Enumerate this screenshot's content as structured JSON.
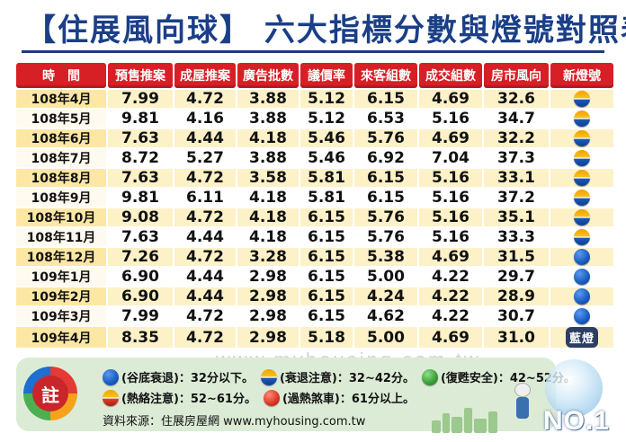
{
  "title": {
    "bracket_left": "【",
    "brand": "住展風向球",
    "bracket_right": "】",
    "rest": "六大指標分數與燈號對照表"
  },
  "table": {
    "headers": [
      "時　間",
      "預售推案",
      "成屋推案",
      "廣告批數",
      "議價率",
      "來客組數",
      "成交組數",
      "房市風向",
      "新燈號"
    ],
    "rows": [
      {
        "month": "108年4月",
        "v": [
          "7.99",
          "4.72",
          "3.88",
          "5.12",
          "6.15",
          "4.69",
          "32.6"
        ],
        "lamp": "yellow-blue"
      },
      {
        "month": "108年5月",
        "v": [
          "9.81",
          "4.16",
          "3.88",
          "5.12",
          "6.53",
          "5.16",
          "34.7"
        ],
        "lamp": "yellow-blue"
      },
      {
        "month": "108年6月",
        "v": [
          "7.63",
          "4.44",
          "4.18",
          "5.46",
          "5.76",
          "4.69",
          "32.2"
        ],
        "lamp": "yellow-blue"
      },
      {
        "month": "108年7月",
        "v": [
          "8.72",
          "5.27",
          "3.88",
          "5.46",
          "6.92",
          "7.04",
          "37.3"
        ],
        "lamp": "yellow-blue"
      },
      {
        "month": "108年8月",
        "v": [
          "7.63",
          "4.72",
          "3.58",
          "5.81",
          "6.15",
          "5.16",
          "33.1"
        ],
        "lamp": "yellow-blue"
      },
      {
        "month": "108年9月",
        "v": [
          "9.81",
          "6.11",
          "4.18",
          "5.81",
          "6.15",
          "5.16",
          "37.2"
        ],
        "lamp": "yellow-blue"
      },
      {
        "month": "108年10月",
        "v": [
          "9.08",
          "4.72",
          "4.18",
          "6.15",
          "5.76",
          "5.16",
          "35.1"
        ],
        "lamp": "yellow-blue"
      },
      {
        "month": "108年11月",
        "v": [
          "7.63",
          "4.44",
          "4.18",
          "6.15",
          "5.76",
          "5.16",
          "33.3"
        ],
        "lamp": "yellow-blue"
      },
      {
        "month": "108年12月",
        "v": [
          "7.26",
          "4.72",
          "3.28",
          "6.15",
          "5.38",
          "4.69",
          "31.5"
        ],
        "lamp": "blue"
      },
      {
        "month": "109年1月",
        "v": [
          "6.90",
          "4.44",
          "2.98",
          "6.15",
          "5.00",
          "4.22",
          "29.7"
        ],
        "lamp": "blue"
      },
      {
        "month": "109年2月",
        "v": [
          "6.90",
          "4.44",
          "2.98",
          "6.15",
          "4.24",
          "4.22",
          "28.9"
        ],
        "lamp": "blue"
      },
      {
        "month": "109年3月",
        "v": [
          "7.99",
          "4.72",
          "2.98",
          "6.15",
          "4.62",
          "4.22",
          "30.7"
        ],
        "lamp": "blue"
      },
      {
        "month": "109年4月",
        "v": [
          "8.35",
          "4.72",
          "2.98",
          "5.18",
          "5.00",
          "4.69",
          "31.0"
        ],
        "lamp": "label"
      }
    ],
    "last_lamp_label": "藍燈"
  },
  "watermark": "www.myhousing.com.tw",
  "legend": {
    "badge": "註",
    "items_line1": [
      {
        "text": "(谷底衰退)：32分以下。",
        "icon": "blue"
      },
      {
        "text": "(衰退注意)：32~42分。",
        "icon": "yellow-blue"
      },
      {
        "text": "(復甦安全)：42~52分。",
        "icon": "green"
      }
    ],
    "items_line2": [
      {
        "text": "(熱絡注意)：52~61分。",
        "icon": "yellow-red"
      },
      {
        "text": "(過熱煞車)：61分以上。",
        "icon": "red"
      }
    ],
    "source": "資料來源：住展房屋網 www.myhousing.com.tw"
  },
  "deco": {
    "badge": "NO.1"
  }
}
